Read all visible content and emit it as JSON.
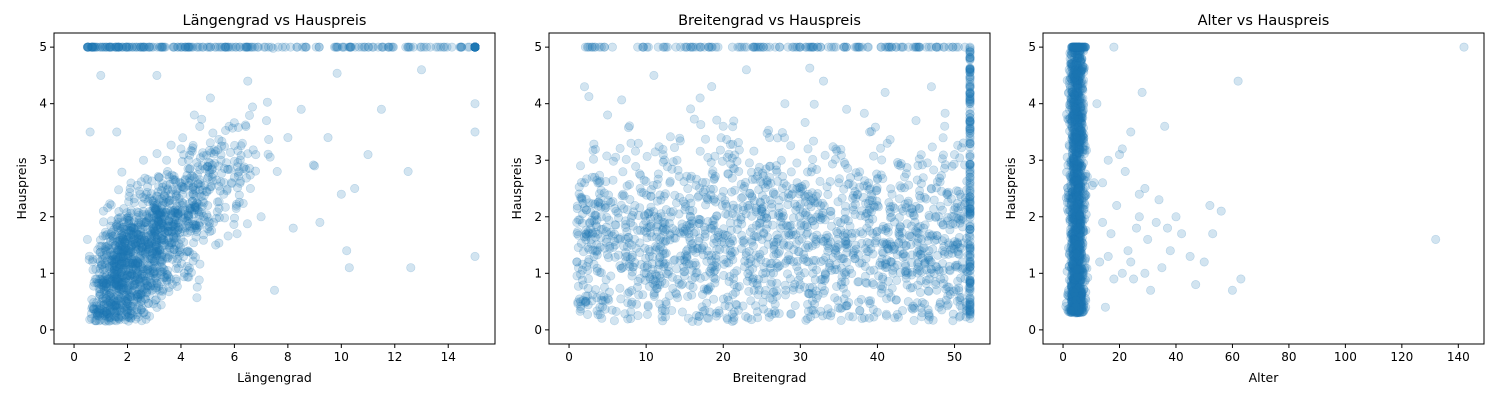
{
  "chart_data": [
    {
      "type": "scatter",
      "title": "Längengrad vs Hauspreis",
      "xlabel": "Längengrad",
      "ylabel": "Hauspreis",
      "xlim": [
        0,
        15
      ],
      "ylim": [
        0,
        5
      ],
      "xticks": [
        0,
        2,
        4,
        6,
        8,
        10,
        12,
        14
      ],
      "yticks": [
        0,
        1,
        2,
        3,
        4,
        5
      ],
      "color": "#1f77b4",
      "point_alpha": 0.2,
      "cluster": {
        "x_range": [
          0.5,
          15
        ],
        "y_cap": 5,
        "relation": "positive correlation, dense mass around x 1-7, y 0.3-4, capped band at y=5"
      },
      "points": [
        [
          0.5,
          1.6
        ],
        [
          0.5,
          5.0
        ],
        [
          0.6,
          3.5
        ],
        [
          0.8,
          0.9
        ],
        [
          1.0,
          4.5
        ],
        [
          1.1,
          2.1
        ],
        [
          1.2,
          0.7
        ],
        [
          1.3,
          1.5
        ],
        [
          1.5,
          1.0
        ],
        [
          1.6,
          3.5
        ],
        [
          1.8,
          0.8
        ],
        [
          2.0,
          1.4
        ],
        [
          2.1,
          2.5
        ],
        [
          2.3,
          0.6
        ],
        [
          2.5,
          1.9
        ],
        [
          2.6,
          3.0
        ],
        [
          2.8,
          1.1
        ],
        [
          3.0,
          2.2
        ],
        [
          3.1,
          4.5
        ],
        [
          3.3,
          1.6
        ],
        [
          3.5,
          2.8
        ],
        [
          3.6,
          0.9
        ],
        [
          3.8,
          2.0
        ],
        [
          4.0,
          3.2
        ],
        [
          4.1,
          1.3
        ],
        [
          4.3,
          2.6
        ],
        [
          4.5,
          3.8
        ],
        [
          4.6,
          1.8
        ],
        [
          4.8,
          2.9
        ],
        [
          5.0,
          2.2
        ],
        [
          5.1,
          4.1
        ],
        [
          5.3,
          1.5
        ],
        [
          5.5,
          3.0
        ],
        [
          5.6,
          2.4
        ],
        [
          5.8,
          3.6
        ],
        [
          6.0,
          2.7
        ],
        [
          6.1,
          1.7
        ],
        [
          6.3,
          3.3
        ],
        [
          6.5,
          4.4
        ],
        [
          6.6,
          2.5
        ],
        [
          6.8,
          3.1
        ],
        [
          7.0,
          2.0
        ],
        [
          7.2,
          3.7
        ],
        [
          7.5,
          0.7
        ],
        [
          7.6,
          2.8
        ],
        [
          8.0,
          3.4
        ],
        [
          8.2,
          1.8
        ],
        [
          8.5,
          3.9
        ],
        [
          9.0,
          2.9
        ],
        [
          9.2,
          1.9
        ],
        [
          9.5,
          3.4
        ],
        [
          10.0,
          2.4
        ],
        [
          10.2,
          1.4
        ],
        [
          10.3,
          1.1
        ],
        [
          10.5,
          2.5
        ],
        [
          11.0,
          3.1
        ],
        [
          11.5,
          3.9
        ],
        [
          12.5,
          2.8
        ],
        [
          12.6,
          1.1
        ],
        [
          13.0,
          4.6
        ],
        [
          15.0,
          5.0
        ],
        [
          15.0,
          4.0
        ],
        [
          15.0,
          3.5
        ],
        [
          15.0,
          1.3
        ]
      ]
    },
    {
      "type": "scatter",
      "title": "Breitengrad vs Hauspreis",
      "xlabel": "Breitengrad",
      "ylabel": "Hauspreis",
      "xlim": [
        0,
        52
      ],
      "ylim": [
        0,
        5
      ],
      "xticks": [
        0,
        10,
        20,
        30,
        40,
        50
      ],
      "yticks": [
        0,
        1,
        2,
        3,
        4,
        5
      ],
      "color": "#1f77b4",
      "point_alpha": 0.2,
      "cluster": {
        "x_range": [
          1,
          52
        ],
        "y_range": [
          0.15,
          5
        ],
        "relation": "no clear trend, dense band y 0.5-3.5 across x, heavy column at x=52 and capped row at y=5"
      },
      "points": [
        [
          1.0,
          1.9
        ],
        [
          1.5,
          0.5
        ],
        [
          2.0,
          4.3
        ],
        [
          2.5,
          1.2
        ],
        [
          3.0,
          2.7
        ],
        [
          4.0,
          0.4
        ],
        [
          5.0,
          3.8
        ],
        [
          6.0,
          1.5
        ],
        [
          7.0,
          2.4
        ],
        [
          8.0,
          0.2
        ],
        [
          9.0,
          3.3
        ],
        [
          10.0,
          1.0
        ],
        [
          11.0,
          4.5
        ],
        [
          12.0,
          2.0
        ],
        [
          13.0,
          0.6
        ],
        [
          14.0,
          3.0
        ],
        [
          15.0,
          1.7
        ],
        [
          16.0,
          0.15
        ],
        [
          17.0,
          4.1
        ],
        [
          18.0,
          2.3
        ],
        [
          19.0,
          0.9
        ],
        [
          20.0,
          3.6
        ],
        [
          21.0,
          1.3
        ],
        [
          22.0,
          2.8
        ],
        [
          23.0,
          4.6
        ],
        [
          24.0,
          0.7
        ],
        [
          25.0,
          2.1
        ],
        [
          26.0,
          3.4
        ],
        [
          27.0,
          1.1
        ],
        [
          28.0,
          4.0
        ],
        [
          29.0,
          2.5
        ],
        [
          30.0,
          0.8
        ],
        [
          31.0,
          3.2
        ],
        [
          32.0,
          1.6
        ],
        [
          33.0,
          4.4
        ],
        [
          34.0,
          0.3
        ],
        [
          35.0,
          2.6
        ],
        [
          36.0,
          3.9
        ],
        [
          37.0,
          1.4
        ],
        [
          38.0,
          0.2
        ],
        [
          39.0,
          3.5
        ],
        [
          40.0,
          2.2
        ],
        [
          41.0,
          4.2
        ],
        [
          42.0,
          1.0
        ],
        [
          43.0,
          2.9
        ],
        [
          44.0,
          0.5
        ],
        [
          45.0,
          3.7
        ],
        [
          46.0,
          1.8
        ],
        [
          47.0,
          4.3
        ],
        [
          48.0,
          0.4
        ],
        [
          49.0,
          2.4
        ],
        [
          50.0,
          3.1
        ],
        [
          51.0,
          1.2
        ],
        [
          52.0,
          0.2
        ],
        [
          52.0,
          1.5
        ],
        [
          52.0,
          2.7
        ],
        [
          52.0,
          4.0
        ],
        [
          52.0,
          5.0
        ],
        [
          3.0,
          5.0
        ],
        [
          15.0,
          5.0
        ],
        [
          30.0,
          5.0
        ],
        [
          45.0,
          5.0
        ]
      ]
    },
    {
      "type": "scatter",
      "title": "Alter vs Hauspreis",
      "xlabel": "Alter",
      "ylabel": "Hauspreis",
      "xlim": [
        0,
        142
      ],
      "ylim": [
        0,
        5
      ],
      "xticks": [
        0,
        20,
        40,
        60,
        80,
        100,
        120,
        140
      ],
      "yticks": [
        0,
        1,
        2,
        3,
        4,
        5
      ],
      "color": "#1f77b4",
      "point_alpha": 0.2,
      "cluster": {
        "x_range": [
          1,
          10
        ],
        "y_range": [
          0.15,
          5
        ],
        "relation": "nearly all points in narrow column x 2-8, sparse outliers to x=142"
      },
      "points": [
        [
          12.0,
          4.0
        ],
        [
          13.0,
          1.2
        ],
        [
          14.0,
          2.6
        ],
        [
          15.0,
          0.4
        ],
        [
          16.0,
          3.0
        ],
        [
          17.0,
          1.7
        ],
        [
          18.0,
          5.0
        ],
        [
          19.0,
          2.2
        ],
        [
          20.0,
          3.1
        ],
        [
          21.0,
          1.0
        ],
        [
          22.0,
          2.8
        ],
        [
          23.0,
          1.4
        ],
        [
          24.0,
          3.5
        ],
        [
          25.0,
          0.9
        ],
        [
          26.0,
          1.8
        ],
        [
          27.0,
          2.0
        ],
        [
          28.0,
          4.2
        ],
        [
          29.0,
          2.5
        ],
        [
          30.0,
          1.6
        ],
        [
          31.0,
          0.7
        ],
        [
          33.0,
          1.9
        ],
        [
          34.0,
          2.3
        ],
        [
          35.0,
          1.1
        ],
        [
          36.0,
          3.6
        ],
        [
          37.0,
          1.8
        ],
        [
          38.0,
          1.4
        ],
        [
          40.0,
          2.0
        ],
        [
          42.0,
          1.7
        ],
        [
          45.0,
          1.3
        ],
        [
          47.0,
          0.8
        ],
        [
          50.0,
          1.2
        ],
        [
          52.0,
          2.2
        ],
        [
          53.0,
          1.7
        ],
        [
          56.0,
          2.1
        ],
        [
          60.0,
          0.7
        ],
        [
          62.0,
          4.4
        ],
        [
          63.0,
          0.9
        ],
        [
          132.0,
          1.6
        ],
        [
          142.0,
          5.0
        ],
        [
          11.0,
          2.6
        ],
        [
          14.0,
          1.9
        ],
        [
          16.0,
          1.3
        ],
        [
          18.0,
          0.9
        ],
        [
          21.0,
          3.2
        ],
        [
          24.0,
          1.2
        ],
        [
          27.0,
          2.4
        ],
        [
          29.0,
          1.0
        ]
      ]
    }
  ]
}
